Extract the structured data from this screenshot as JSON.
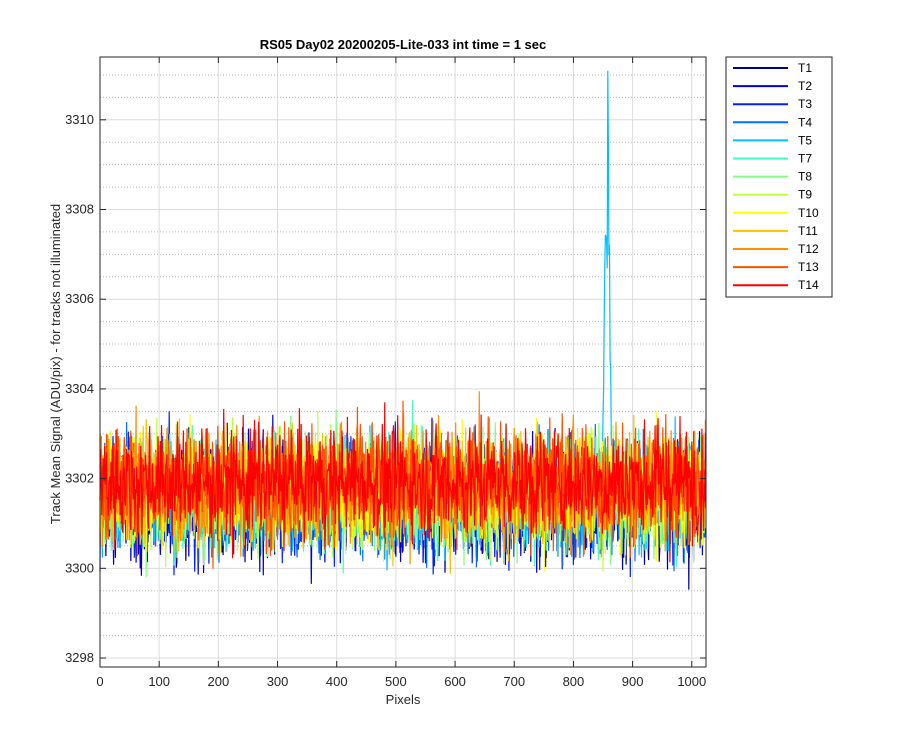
{
  "chart_data": {
    "type": "line",
    "title": "RS05 Day02 20200205-Lite-033 int time = 1 sec",
    "xlabel": "Pixels",
    "ylabel": "Track Mean Signal (ADU/pix) - for tracks not illuminated",
    "xlim": [
      0,
      1024
    ],
    "ylim": [
      3297.8,
      3311.4
    ],
    "xticks": [
      0,
      100,
      200,
      300,
      400,
      500,
      600,
      700,
      800,
      900,
      1000
    ],
    "yticks": [
      3298,
      3300,
      3302,
      3304,
      3306,
      3308,
      3310
    ],
    "grid": true,
    "minor_grid_y": true,
    "legend_position": "outside-top-right",
    "n_points": 1024,
    "approx_mean": 3301.7,
    "approx_noise_range": [
      3299.0,
      3304.5
    ],
    "spike": {
      "series": "T5",
      "x": 857,
      "peak": 3311.4
    },
    "series": [
      {
        "name": "T1",
        "color": "#00008f"
      },
      {
        "name": "T2",
        "color": "#0000cf"
      },
      {
        "name": "T3",
        "color": "#0020ff"
      },
      {
        "name": "T4",
        "color": "#0070ff"
      },
      {
        "name": "T5",
        "color": "#00c0ff"
      },
      {
        "name": "T7",
        "color": "#40ffbf"
      },
      {
        "name": "T8",
        "color": "#80ff80"
      },
      {
        "name": "T9",
        "color": "#bfff40"
      },
      {
        "name": "T10",
        "color": "#ffff00"
      },
      {
        "name": "T11",
        "color": "#ffc000"
      },
      {
        "name": "T12",
        "color": "#ff9000"
      },
      {
        "name": "T13",
        "color": "#ff5000"
      },
      {
        "name": "T14",
        "color": "#ff0000"
      }
    ]
  }
}
